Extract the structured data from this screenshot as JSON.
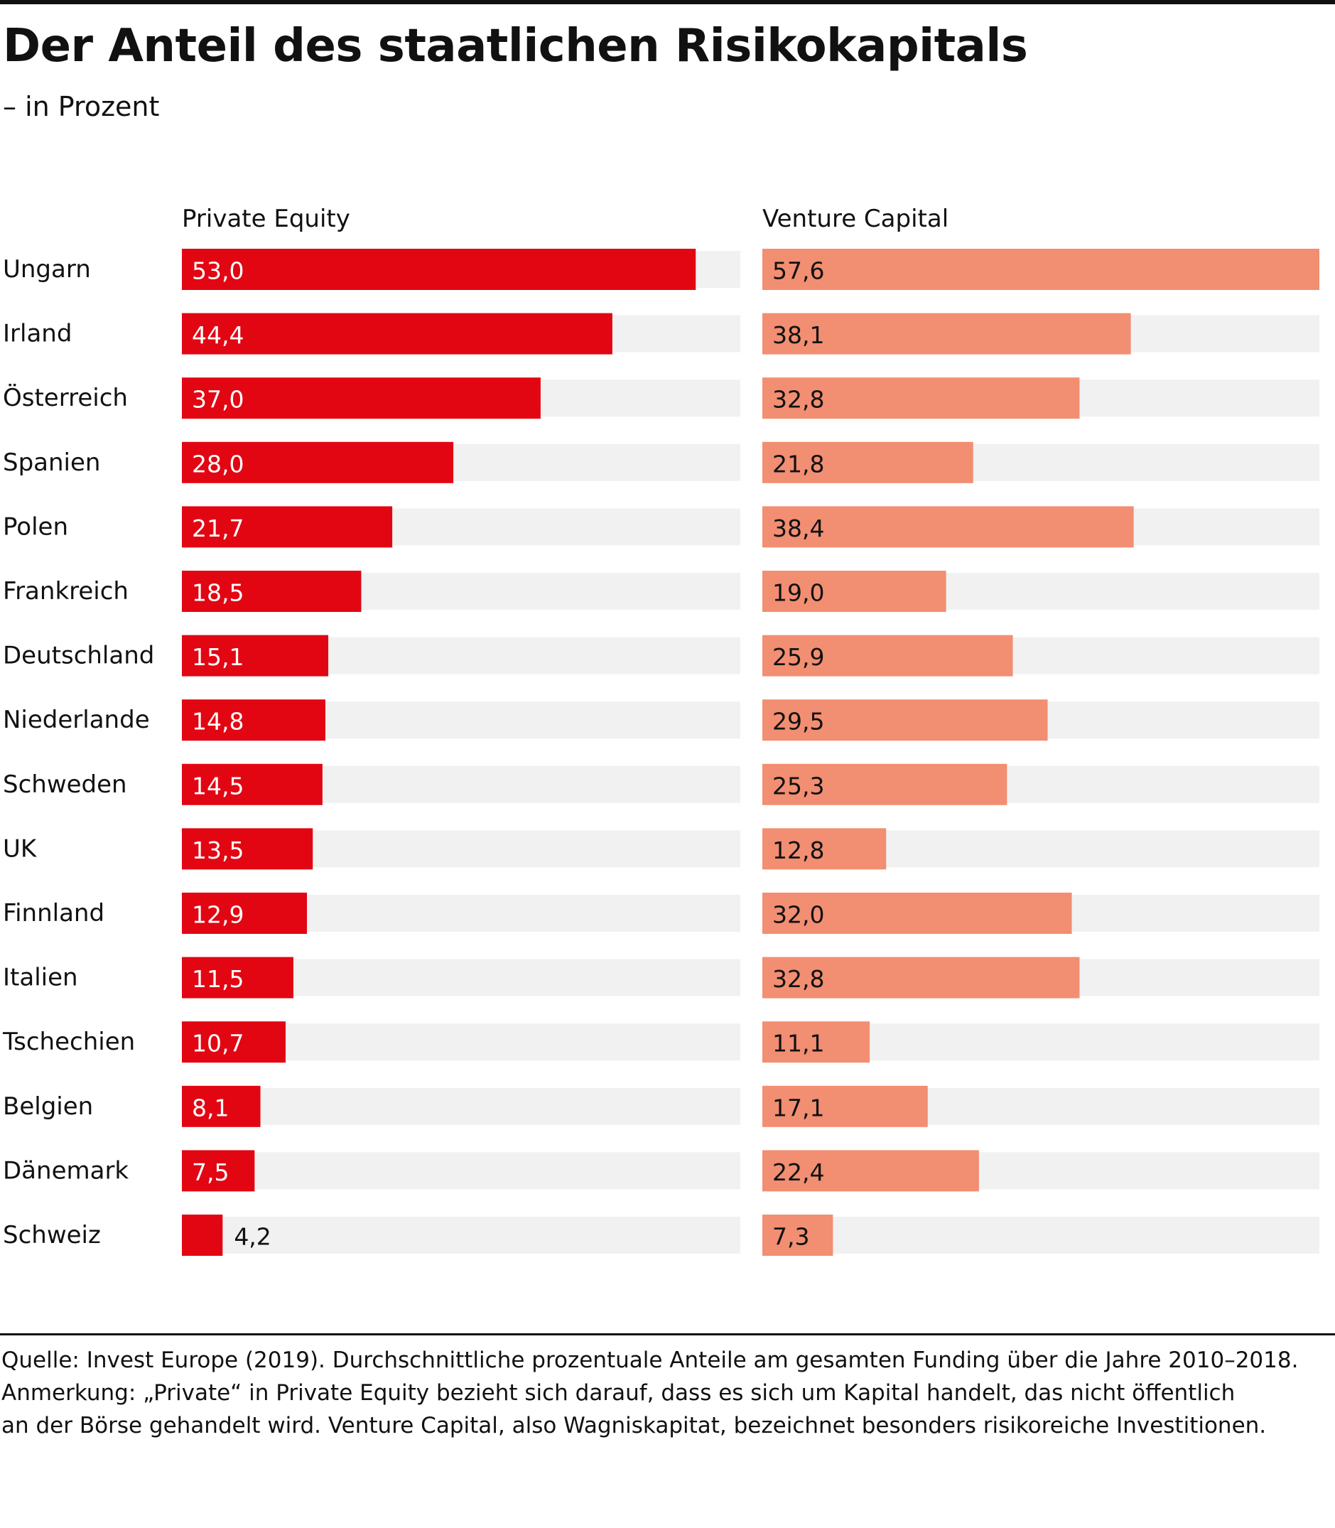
{
  "title": "Der Anteil des staatlichen Risikokapitals",
  "subtitle": "– in Prozent",
  "colors": {
    "pe_bar": "#e20613",
    "vc_bar": "#f28e72",
    "track": "#f1f1f1",
    "text": "#111111",
    "label_on_pe": "#ffffff"
  },
  "chart_data": {
    "type": "bar",
    "orientation": "horizontal",
    "categories": [
      "Ungarn",
      "Irland",
      "Österreich",
      "Spanien",
      "Polen",
      "Frankreich",
      "Deutschland",
      "Niederlande",
      "Schweden",
      "UK",
      "Finnland",
      "Italien",
      "Tschechien",
      "Belgien",
      "Dänemark",
      "Schweiz"
    ],
    "series": [
      {
        "name": "Private Equity",
        "values": [
          53.0,
          44.4,
          37.0,
          28.0,
          21.7,
          18.5,
          15.1,
          14.8,
          14.5,
          13.5,
          12.9,
          11.5,
          10.7,
          8.1,
          7.5,
          4.2
        ],
        "labels": [
          "53,0",
          "44,4",
          "37,0",
          "28,0",
          "21,7",
          "18,5",
          "15,1",
          "14,8",
          "14,5",
          "13,5",
          "12,9",
          "11,5",
          "10,7",
          "8,1",
          "7,5",
          "4,2"
        ]
      },
      {
        "name": "Venture Capital",
        "values": [
          57.6,
          38.1,
          32.8,
          21.8,
          38.4,
          19.0,
          25.9,
          29.5,
          25.3,
          12.8,
          32.0,
          32.8,
          11.1,
          17.1,
          22.4,
          7.3
        ],
        "labels": [
          "57,6",
          "38,1",
          "32,8",
          "21,8",
          "38,4",
          "19,0",
          "25,9",
          "29,5",
          "25,3",
          "12,8",
          "32,0",
          "32,8",
          "11,1",
          "17,1",
          "22,4",
          "7,3"
        ]
      }
    ],
    "xlim": [
      [
        0,
        57.6
      ],
      [
        0,
        57.6
      ]
    ],
    "grid": false,
    "legend": "none"
  },
  "footer": {
    "line1": "Quelle: Invest Europe (2019). Durchschnittliche prozentuale Anteile am gesamten Funding über die Jahre 2010–2018.",
    "line2": "Anmerkung: „Private“ in Private Equity bezieht sich darauf, dass es sich um Kapital handelt, das nicht öffentlich",
    "line3": "an der Börse gehandelt wird. Venture Capital, also Wagniskapitat, bezeichnet besonders risikoreiche Investitionen."
  }
}
